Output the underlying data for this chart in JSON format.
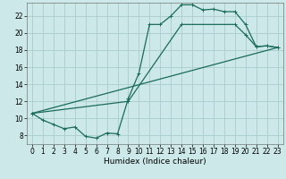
{
  "xlabel": "Humidex (Indice chaleur)",
  "bg_color": "#cce8e8",
  "grid_color": "#aacccc",
  "line_color": "#1a6b5a",
  "xlim": [
    -0.5,
    23.5
  ],
  "ylim": [
    7,
    23.5
  ],
  "yticks": [
    8,
    10,
    12,
    14,
    16,
    18,
    20,
    22
  ],
  "xticks": [
    0,
    1,
    2,
    3,
    4,
    5,
    6,
    7,
    8,
    9,
    10,
    11,
    12,
    13,
    14,
    15,
    16,
    17,
    18,
    19,
    20,
    21,
    22,
    23
  ],
  "series1_x": [
    0,
    1,
    2,
    3,
    4,
    5,
    6,
    7,
    8,
    9,
    10,
    11,
    12,
    13,
    14,
    15,
    16,
    17,
    18,
    19,
    20,
    21,
    22,
    23
  ],
  "series1_y": [
    10.6,
    9.8,
    9.3,
    8.8,
    9.0,
    7.9,
    7.7,
    8.3,
    8.2,
    12.3,
    15.3,
    21.0,
    21.0,
    22.0,
    23.3,
    23.3,
    22.7,
    22.8,
    22.5,
    22.5,
    21.0,
    18.4,
    18.5,
    18.3
  ],
  "series2_x": [
    0,
    23
  ],
  "series2_y": [
    10.6,
    18.3
  ],
  "series3_x": [
    0,
    9,
    14,
    19,
    20,
    21,
    22,
    23
  ],
  "series3_y": [
    10.6,
    12.0,
    21.0,
    21.0,
    19.8,
    18.4,
    18.5,
    18.3
  ],
  "tick_fontsize": 5.5,
  "xlabel_fontsize": 6.5,
  "linewidth": 0.9,
  "marker_size": 2.5
}
